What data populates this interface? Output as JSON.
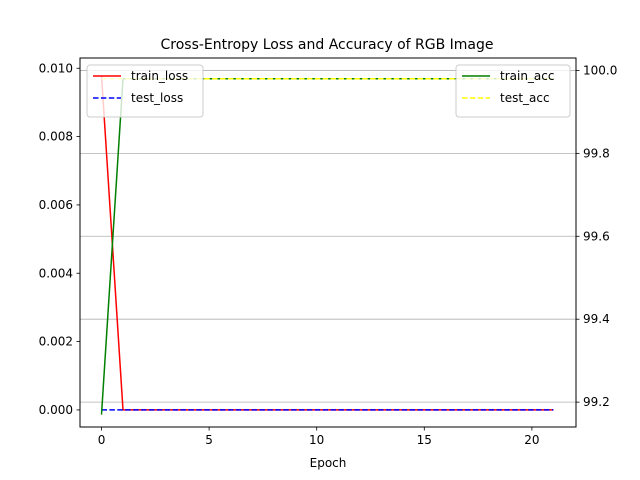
{
  "chart_data": {
    "type": "line",
    "title": "Cross-Entropy Loss and Accuracy of RGB Image",
    "xlabel": "Epoch",
    "ylabel": "",
    "ylabel_right": "",
    "x": [
      0,
      1,
      2,
      3,
      4,
      5,
      6,
      7,
      8,
      9,
      10,
      11,
      12,
      13,
      14,
      15,
      16,
      17,
      18,
      19,
      20,
      21
    ],
    "xlim": [
      -1,
      22.05
    ],
    "xticks": [
      0,
      5,
      10,
      15,
      20
    ],
    "ylim": [
      -0.0005,
      0.0103
    ],
    "yticks": [
      0.0,
      0.002,
      0.004,
      0.006,
      0.008,
      0.01
    ],
    "yticks_text": [
      "0.000",
      "0.002",
      "0.004",
      "0.006",
      "0.008",
      "0.010"
    ],
    "ylim_right": [
      99.14,
      100.03
    ],
    "yticks_right": [
      99.2,
      99.4,
      99.6,
      99.8,
      100.0
    ],
    "yticks_right_text": [
      "99.2",
      "99.4",
      "99.6",
      "99.8",
      "100.0"
    ],
    "grid": "right-axis horizontal",
    "legend_left": "upper-left",
    "legend_right": "upper-right",
    "series_left": [
      {
        "name": "train_loss",
        "color": "#ff0000",
        "dash": "solid",
        "values": [
          0.0098,
          0,
          0,
          0,
          0,
          0,
          0,
          0,
          0,
          0,
          0,
          0,
          0,
          0,
          0,
          0,
          0,
          0,
          0,
          0,
          0,
          0
        ]
      },
      {
        "name": "test_loss",
        "color": "#0000ff",
        "dash": "dashed",
        "values": [
          0,
          0,
          0,
          0,
          0,
          0,
          0,
          0,
          0,
          0,
          0,
          0,
          0,
          0,
          0,
          0,
          0,
          0,
          0,
          0,
          0,
          0
        ]
      }
    ],
    "series_right": [
      {
        "name": "train_acc",
        "color": "#008000",
        "dash": "solid",
        "values": [
          99.17,
          99.98,
          99.98,
          99.98,
          99.98,
          99.98,
          99.98,
          99.98,
          99.98,
          99.98,
          99.98,
          99.98,
          99.98,
          99.98,
          99.98,
          99.98,
          99.98,
          99.98,
          99.98,
          99.98,
          99.98,
          99.98
        ]
      },
      {
        "name": "test_acc",
        "color": "#ffff00",
        "dash": "dashed",
        "values": [
          99.98,
          99.98,
          99.98,
          99.98,
          99.98,
          99.98,
          99.98,
          99.98,
          99.98,
          99.98,
          99.98,
          99.98,
          99.98,
          99.98,
          99.98,
          99.98,
          99.98,
          99.98,
          99.98,
          99.98,
          99.98,
          99.98
        ]
      }
    ]
  }
}
